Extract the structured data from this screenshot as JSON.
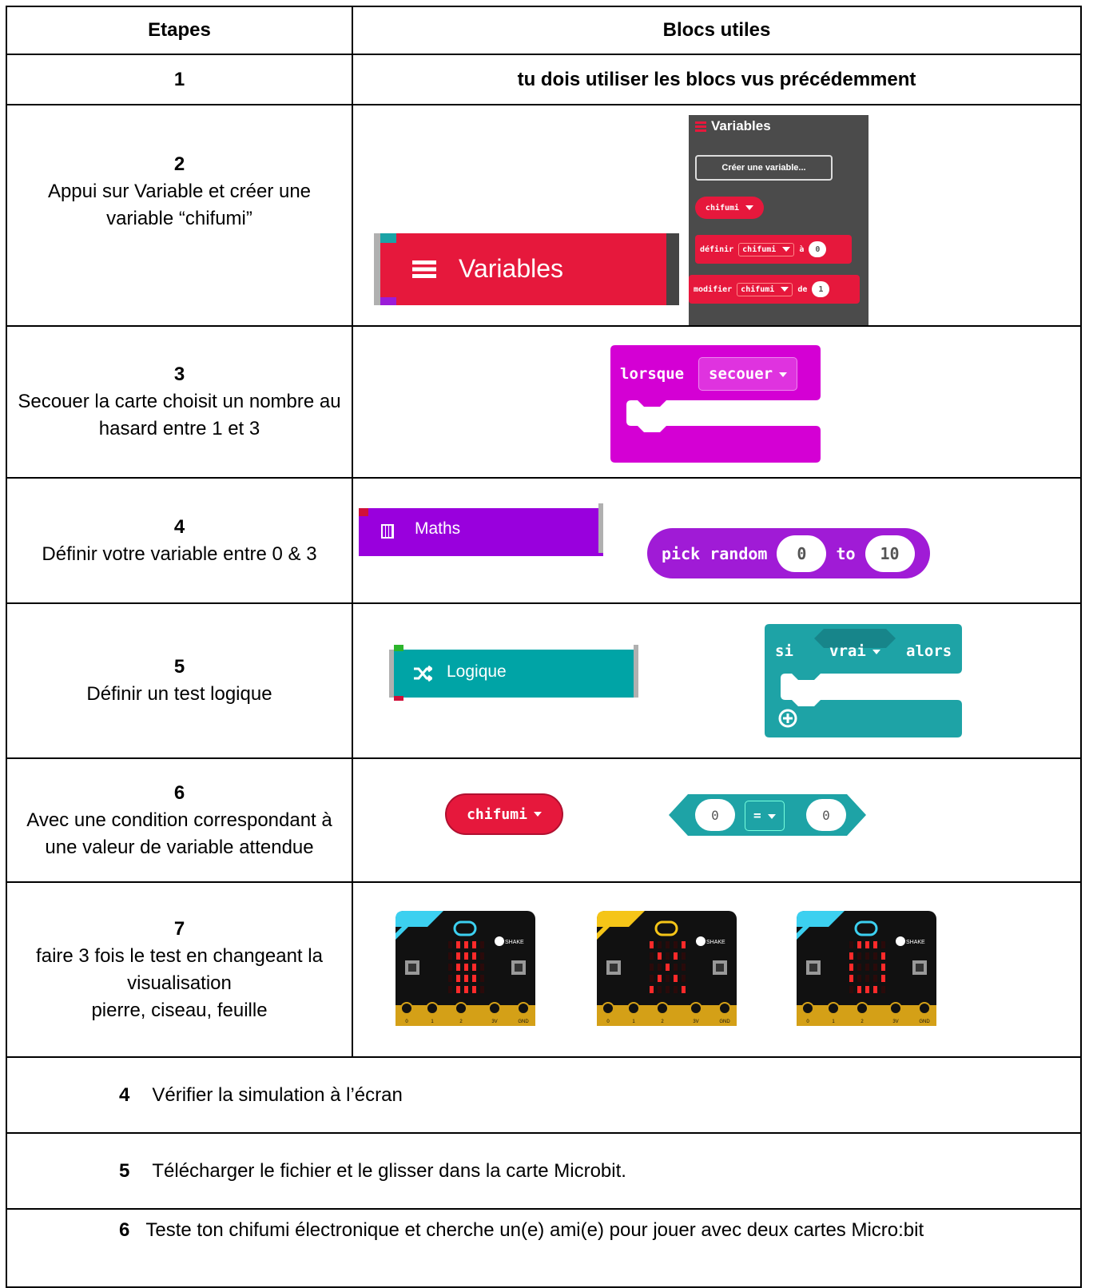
{
  "table": {
    "header": [
      "Etapes",
      "Blocs utiles"
    ],
    "rows": [
      {
        "step": "1",
        "blocks": {
          "note": "tu dois utiliser les blocs vus précédemment"
        }
      },
      {
        "step": "2",
        "text": "Appui sur Variable et créer une variable “chifumi”",
        "blocks": {
          "category": "Variables",
          "panel": {
            "title": "Variables",
            "button": "Créer une variable...",
            "variable": "chifumi",
            "set": [
              "définir",
              "chifumi",
              "à",
              "0"
            ],
            "change": [
              "modifier",
              "chifumi",
              "de",
              "1"
            ]
          }
        }
      },
      {
        "step": "3",
        "text": "Secouer la carte choisit un nombre au hasard entre 1 et 3",
        "blocks": {
          "event": [
            "lorsque",
            "secouer"
          ]
        }
      },
      {
        "step": "4",
        "text": "Définir votre variable entre 0 & 3",
        "blocks": {
          "category": "Maths",
          "random": [
            "pick random",
            "0",
            "to",
            "10"
          ]
        }
      },
      {
        "step": "5",
        "text": "Définir un test logique",
        "blocks": {
          "category": "Logique",
          "if": [
            "si",
            "vrai",
            "alors"
          ]
        }
      },
      {
        "step": "6",
        "text": "Avec une condition correspondant à une valeur de variable attendue",
        "blocks": {
          "variable": "chifumi",
          "compare": [
            "0",
            "=",
            "0"
          ]
        }
      },
      {
        "step": "7",
        "lines": [
          "faire 3 fois le test en changeant la visualisation",
          "pierre, ciseau, feuille"
        ],
        "blocks": {
          "button": "SHAKE",
          "pins": [
            "0",
            "1",
            "2",
            "3V",
            "GND"
          ]
        }
      }
    ],
    "footer": [
      {
        "step": "4",
        "text": "Vérifier la simulation à l’écran"
      },
      {
        "step": "5",
        "text": "Télécharger le fichier et le glisser dans la carte Microbit."
      },
      {
        "step": "6",
        "text": "Teste ton chifumi électronique et cherche un(e) ami(e) pour jouer avec deux cartes Micro:bit"
      }
    ]
  }
}
